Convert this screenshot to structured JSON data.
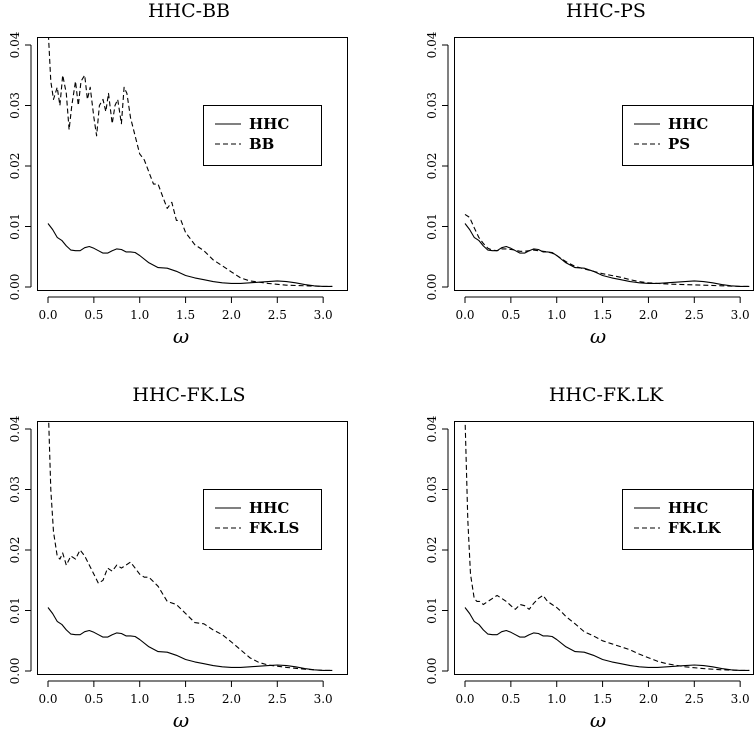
{
  "chart_data": [
    {
      "type": "line",
      "title": "HHC-BB",
      "xlabel": "ω",
      "ylabel": "",
      "xlim": [
        0,
        3.14
      ],
      "ylim": [
        0,
        0.04
      ],
      "xticks": [
        "0.0",
        "0.5",
        "1.0",
        "1.5",
        "2.0",
        "2.5",
        "3.0"
      ],
      "yticks": [
        "0.00",
        "0.01",
        "0.02",
        "0.03",
        "0.04"
      ],
      "legend_position": "right-middle",
      "series": [
        {
          "name": "HHC",
          "linestyle": "solid",
          "x": [
            0.0,
            0.05,
            0.1,
            0.15,
            0.2,
            0.25,
            0.3,
            0.35,
            0.4,
            0.45,
            0.5,
            0.55,
            0.6,
            0.65,
            0.7,
            0.75,
            0.8,
            0.85,
            0.9,
            0.95,
            1.0,
            1.1,
            1.2,
            1.3,
            1.4,
            1.5,
            1.6,
            1.7,
            1.8,
            1.9,
            2.0,
            2.1,
            2.2,
            2.3,
            2.4,
            2.5,
            2.6,
            2.7,
            2.8,
            2.9,
            3.0,
            3.1
          ],
          "y": [
            0.0105,
            0.0095,
            0.0082,
            0.0077,
            0.0068,
            0.0061,
            0.006,
            0.006,
            0.0065,
            0.0067,
            0.0064,
            0.006,
            0.0056,
            0.0056,
            0.006,
            0.0063,
            0.0062,
            0.0058,
            0.0058,
            0.0057,
            0.0052,
            0.004,
            0.0032,
            0.0031,
            0.0026,
            0.0019,
            0.0015,
            0.0012,
            0.0009,
            0.0007,
            0.0006,
            0.0006,
            0.0007,
            0.0008,
            0.0009,
            0.001,
            0.0009,
            0.0007,
            0.0004,
            0.0002,
            0.0001,
            0.0001
          ]
        },
        {
          "name": "BB",
          "linestyle": "dashed",
          "x": [
            0.0,
            0.03,
            0.06,
            0.1,
            0.13,
            0.16,
            0.2,
            0.23,
            0.26,
            0.3,
            0.33,
            0.36,
            0.4,
            0.43,
            0.46,
            0.5,
            0.53,
            0.56,
            0.6,
            0.63,
            0.66,
            0.7,
            0.73,
            0.76,
            0.8,
            0.83,
            0.86,
            0.9,
            0.95,
            1.0,
            1.05,
            1.1,
            1.15,
            1.2,
            1.25,
            1.3,
            1.35,
            1.4,
            1.45,
            1.5,
            1.55,
            1.6,
            1.7,
            1.8,
            1.9,
            2.0,
            2.1,
            2.2,
            2.4,
            2.6,
            2.8,
            3.0,
            3.1
          ],
          "y": [
            0.043,
            0.034,
            0.031,
            0.033,
            0.03,
            0.035,
            0.032,
            0.026,
            0.03,
            0.034,
            0.03,
            0.034,
            0.035,
            0.031,
            0.033,
            0.028,
            0.025,
            0.03,
            0.031,
            0.029,
            0.032,
            0.027,
            0.03,
            0.031,
            0.027,
            0.033,
            0.032,
            0.028,
            0.025,
            0.022,
            0.021,
            0.019,
            0.017,
            0.017,
            0.015,
            0.013,
            0.014,
            0.011,
            0.011,
            0.009,
            0.008,
            0.007,
            0.006,
            0.0045,
            0.0035,
            0.0025,
            0.0015,
            0.001,
            0.0006,
            0.0003,
            0.0002,
            0.0001,
            0.0001
          ]
        }
      ]
    },
    {
      "type": "line",
      "title": "HHC-PS",
      "xlabel": "ω",
      "ylabel": "",
      "xlim": [
        0,
        3.14
      ],
      "ylim": [
        0,
        0.04
      ],
      "xticks": [
        "0.0",
        "0.5",
        "1.0",
        "1.5",
        "2.0",
        "2.5",
        "3.0"
      ],
      "yticks": [
        "0.00",
        "0.01",
        "0.02",
        "0.03",
        "0.04"
      ],
      "legend_position": "right-middle",
      "series": [
        {
          "name": "HHC",
          "linestyle": "solid",
          "x": [
            0.0,
            0.05,
            0.1,
            0.15,
            0.2,
            0.25,
            0.3,
            0.35,
            0.4,
            0.45,
            0.5,
            0.55,
            0.6,
            0.65,
            0.7,
            0.75,
            0.8,
            0.85,
            0.9,
            0.95,
            1.0,
            1.1,
            1.2,
            1.3,
            1.4,
            1.5,
            1.6,
            1.7,
            1.8,
            1.9,
            2.0,
            2.1,
            2.2,
            2.3,
            2.4,
            2.5,
            2.6,
            2.7,
            2.8,
            2.9,
            3.0,
            3.1
          ],
          "y": [
            0.0105,
            0.0095,
            0.0082,
            0.0077,
            0.0068,
            0.0061,
            0.006,
            0.006,
            0.0065,
            0.0067,
            0.0064,
            0.006,
            0.0056,
            0.0056,
            0.006,
            0.0063,
            0.0062,
            0.0058,
            0.0058,
            0.0057,
            0.0052,
            0.004,
            0.0032,
            0.0031,
            0.0026,
            0.0019,
            0.0015,
            0.0012,
            0.0009,
            0.0007,
            0.0006,
            0.0006,
            0.0007,
            0.0008,
            0.0009,
            0.001,
            0.0009,
            0.0007,
            0.0004,
            0.0002,
            0.0001,
            0.0001
          ]
        },
        {
          "name": "PS",
          "linestyle": "dashed",
          "x": [
            0.0,
            0.05,
            0.1,
            0.15,
            0.2,
            0.25,
            0.3,
            0.35,
            0.4,
            0.45,
            0.5,
            0.55,
            0.6,
            0.65,
            0.7,
            0.75,
            0.8,
            0.85,
            0.9,
            0.95,
            1.0,
            1.1,
            1.2,
            1.3,
            1.4,
            1.5,
            1.6,
            1.7,
            1.8,
            1.9,
            2.0,
            2.2,
            2.4,
            2.6,
            2.8,
            3.0,
            3.1
          ],
          "y": [
            0.012,
            0.0115,
            0.0098,
            0.0082,
            0.0072,
            0.0064,
            0.0061,
            0.006,
            0.0063,
            0.0063,
            0.0062,
            0.0061,
            0.0059,
            0.0059,
            0.006,
            0.0061,
            0.006,
            0.0059,
            0.0058,
            0.0056,
            0.0052,
            0.0042,
            0.0034,
            0.003,
            0.0026,
            0.0022,
            0.0019,
            0.0016,
            0.0012,
            0.0009,
            0.0007,
            0.0005,
            0.0004,
            0.0003,
            0.0002,
            0.0001,
            0.0001
          ]
        }
      ]
    },
    {
      "type": "line",
      "title": "HHC-FK.LS",
      "xlabel": "ω",
      "ylabel": "",
      "xlim": [
        0,
        3.14
      ],
      "ylim": [
        0,
        0.04
      ],
      "xticks": [
        "0.0",
        "0.5",
        "1.0",
        "1.5",
        "2.0",
        "2.5",
        "3.0"
      ],
      "yticks": [
        "0.00",
        "0.01",
        "0.02",
        "0.03",
        "0.04"
      ],
      "legend_position": "right-middle",
      "series": [
        {
          "name": "HHC",
          "linestyle": "solid",
          "x": [
            0.0,
            0.05,
            0.1,
            0.15,
            0.2,
            0.25,
            0.3,
            0.35,
            0.4,
            0.45,
            0.5,
            0.55,
            0.6,
            0.65,
            0.7,
            0.75,
            0.8,
            0.85,
            0.9,
            0.95,
            1.0,
            1.1,
            1.2,
            1.3,
            1.4,
            1.5,
            1.6,
            1.7,
            1.8,
            1.9,
            2.0,
            2.1,
            2.2,
            2.3,
            2.4,
            2.5,
            2.6,
            2.7,
            2.8,
            2.9,
            3.0,
            3.1
          ],
          "y": [
            0.0105,
            0.0095,
            0.0082,
            0.0077,
            0.0068,
            0.0061,
            0.006,
            0.006,
            0.0065,
            0.0067,
            0.0064,
            0.006,
            0.0056,
            0.0056,
            0.006,
            0.0063,
            0.0062,
            0.0058,
            0.0058,
            0.0057,
            0.0052,
            0.004,
            0.0032,
            0.0031,
            0.0026,
            0.0019,
            0.0015,
            0.0012,
            0.0009,
            0.0007,
            0.0006,
            0.0006,
            0.0007,
            0.0008,
            0.0009,
            0.001,
            0.0009,
            0.0007,
            0.0004,
            0.0002,
            0.0001,
            0.0001
          ]
        },
        {
          "name": "FK.LS",
          "linestyle": "dashed",
          "x": [
            0.0,
            0.03,
            0.06,
            0.1,
            0.13,
            0.16,
            0.2,
            0.25,
            0.3,
            0.35,
            0.4,
            0.45,
            0.5,
            0.55,
            0.6,
            0.65,
            0.7,
            0.75,
            0.8,
            0.85,
            0.9,
            0.95,
            1.0,
            1.05,
            1.1,
            1.2,
            1.3,
            1.4,
            1.5,
            1.6,
            1.7,
            1.8,
            1.9,
            2.0,
            2.1,
            2.2,
            2.3,
            2.4,
            2.6,
            2.8,
            3.0,
            3.1
          ],
          "y": [
            0.045,
            0.03,
            0.023,
            0.019,
            0.0185,
            0.0195,
            0.0175,
            0.019,
            0.0185,
            0.02,
            0.019,
            0.0175,
            0.016,
            0.0145,
            0.015,
            0.017,
            0.0165,
            0.0175,
            0.017,
            0.0175,
            0.018,
            0.017,
            0.016,
            0.0155,
            0.0155,
            0.014,
            0.0115,
            0.011,
            0.0095,
            0.008,
            0.0078,
            0.0068,
            0.006,
            0.0048,
            0.0035,
            0.0022,
            0.0014,
            0.001,
            0.0006,
            0.0003,
            0.0001,
            0.0001
          ]
        }
      ]
    },
    {
      "type": "line",
      "title": "HHC-FK.LK",
      "xlabel": "ω",
      "ylabel": "",
      "xlim": [
        0,
        3.14
      ],
      "ylim": [
        0,
        0.04
      ],
      "xticks": [
        "0.0",
        "0.5",
        "1.0",
        "1.5",
        "2.0",
        "2.5",
        "3.0"
      ],
      "yticks": [
        "0.00",
        "0.01",
        "0.02",
        "0.03",
        "0.04"
      ],
      "legend_position": "right-middle",
      "series": [
        {
          "name": "HHC",
          "linestyle": "solid",
          "x": [
            0.0,
            0.05,
            0.1,
            0.15,
            0.2,
            0.25,
            0.3,
            0.35,
            0.4,
            0.45,
            0.5,
            0.55,
            0.6,
            0.65,
            0.7,
            0.75,
            0.8,
            0.85,
            0.9,
            0.95,
            1.0,
            1.1,
            1.2,
            1.3,
            1.4,
            1.5,
            1.6,
            1.7,
            1.8,
            1.9,
            2.0,
            2.1,
            2.2,
            2.3,
            2.4,
            2.5,
            2.6,
            2.7,
            2.8,
            2.9,
            3.0,
            3.1
          ],
          "y": [
            0.0105,
            0.0095,
            0.0082,
            0.0077,
            0.0068,
            0.0061,
            0.006,
            0.006,
            0.0065,
            0.0067,
            0.0064,
            0.006,
            0.0056,
            0.0056,
            0.006,
            0.0063,
            0.0062,
            0.0058,
            0.0058,
            0.0057,
            0.0052,
            0.004,
            0.0032,
            0.0031,
            0.0026,
            0.0019,
            0.0015,
            0.0012,
            0.0009,
            0.0007,
            0.0006,
            0.0006,
            0.0007,
            0.0008,
            0.0009,
            0.001,
            0.0009,
            0.0007,
            0.0004,
            0.0002,
            0.0001,
            0.0001
          ]
        },
        {
          "name": "FK.LK",
          "linestyle": "dashed",
          "x": [
            0.0,
            0.03,
            0.06,
            0.1,
            0.13,
            0.16,
            0.2,
            0.25,
            0.3,
            0.35,
            0.4,
            0.45,
            0.5,
            0.55,
            0.6,
            0.65,
            0.7,
            0.75,
            0.8,
            0.85,
            0.9,
            0.95,
            1.0,
            1.05,
            1.1,
            1.2,
            1.3,
            1.4,
            1.5,
            1.6,
            1.7,
            1.8,
            1.9,
            2.0,
            2.1,
            2.2,
            2.4,
            2.6,
            2.8,
            3.0,
            3.1
          ],
          "y": [
            0.042,
            0.025,
            0.016,
            0.012,
            0.0115,
            0.0115,
            0.011,
            0.0115,
            0.012,
            0.0125,
            0.012,
            0.0115,
            0.0108,
            0.0102,
            0.011,
            0.0108,
            0.0102,
            0.0112,
            0.012,
            0.0125,
            0.0115,
            0.011,
            0.0105,
            0.0098,
            0.009,
            0.0078,
            0.0065,
            0.0058,
            0.005,
            0.0045,
            0.004,
            0.0035,
            0.0028,
            0.0022,
            0.0016,
            0.0012,
            0.0007,
            0.0004,
            0.0002,
            0.0001,
            0.0001
          ]
        }
      ]
    }
  ]
}
